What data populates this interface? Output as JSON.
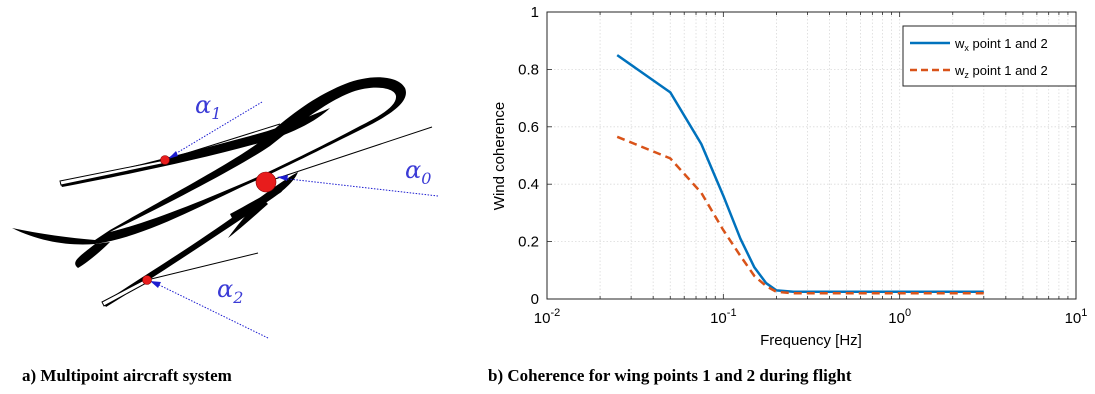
{
  "panel_a": {
    "caption": "a) Multipoint aircraft system",
    "angles": [
      {
        "symbol": "α",
        "subscript": "1"
      },
      {
        "symbol": "α",
        "subscript": "0"
      },
      {
        "symbol": "α",
        "subscript": "2"
      }
    ],
    "colors": {
      "marker": "#e81c1c",
      "arrow": "#1c1cd0",
      "body": "#000000"
    }
  },
  "panel_b": {
    "caption": "b) Coherence for wing points 1 and 2 during flight"
  },
  "chart_data": {
    "type": "line",
    "xscale": "log",
    "xlim": [
      0.01,
      10
    ],
    "ylim": [
      0,
      1
    ],
    "xlabel": "Frequency [Hz]",
    "ylabel": "Wind coherence",
    "grid": true,
    "legend_position": "top-right",
    "xticks": [
      {
        "base": "10",
        "exp": "-2",
        "value": 0.01
      },
      {
        "base": "10",
        "exp": "-1",
        "value": 0.1
      },
      {
        "base": "10",
        "exp": "0",
        "value": 1
      },
      {
        "base": "10",
        "exp": "1",
        "value": 10
      }
    ],
    "yticks": [
      "0",
      "0.2",
      "0.4",
      "0.6",
      "0.8",
      "1"
    ],
    "series": [
      {
        "name_main": "w",
        "name_sub": "x",
        "name_rest": " point 1 and 2",
        "color": "#0072bd",
        "style": "solid",
        "x": [
          0.025,
          0.05,
          0.075,
          0.1,
          0.125,
          0.15,
          0.175,
          0.2,
          0.25,
          0.5,
          1,
          2,
          3
        ],
        "y": [
          0.85,
          0.72,
          0.54,
          0.36,
          0.21,
          0.11,
          0.055,
          0.03,
          0.025,
          0.025,
          0.025,
          0.025,
          0.025
        ]
      },
      {
        "name_main": "w",
        "name_sub": "z",
        "name_rest": " point 1 and 2",
        "color": "#d95319",
        "style": "dashed",
        "x": [
          0.025,
          0.05,
          0.075,
          0.1,
          0.125,
          0.15,
          0.175,
          0.2,
          0.25,
          0.5,
          1,
          2,
          3
        ],
        "y": [
          0.565,
          0.49,
          0.37,
          0.24,
          0.15,
          0.08,
          0.045,
          0.025,
          0.02,
          0.02,
          0.02,
          0.02,
          0.02
        ]
      }
    ]
  }
}
